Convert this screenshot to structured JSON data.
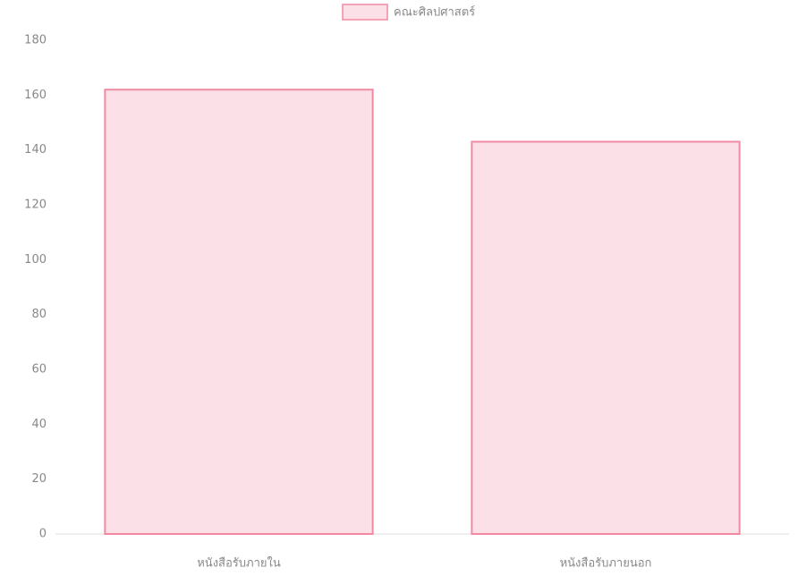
{
  "chart_data": {
    "type": "bar",
    "categories": [
      "หนังสือรับภายใน",
      "หนังสือรับภายนอก"
    ],
    "series": [
      {
        "name": "คณะศิลปศาสตร์",
        "color": "#fbe1e7",
        "border_color": "#f08aa2",
        "values": [
          162,
          143
        ]
      }
    ],
    "ylim": [
      0,
      180
    ],
    "yticks": [
      0,
      20,
      40,
      60,
      80,
      100,
      120,
      140,
      160,
      180
    ],
    "grid": false,
    "legend": "top"
  }
}
